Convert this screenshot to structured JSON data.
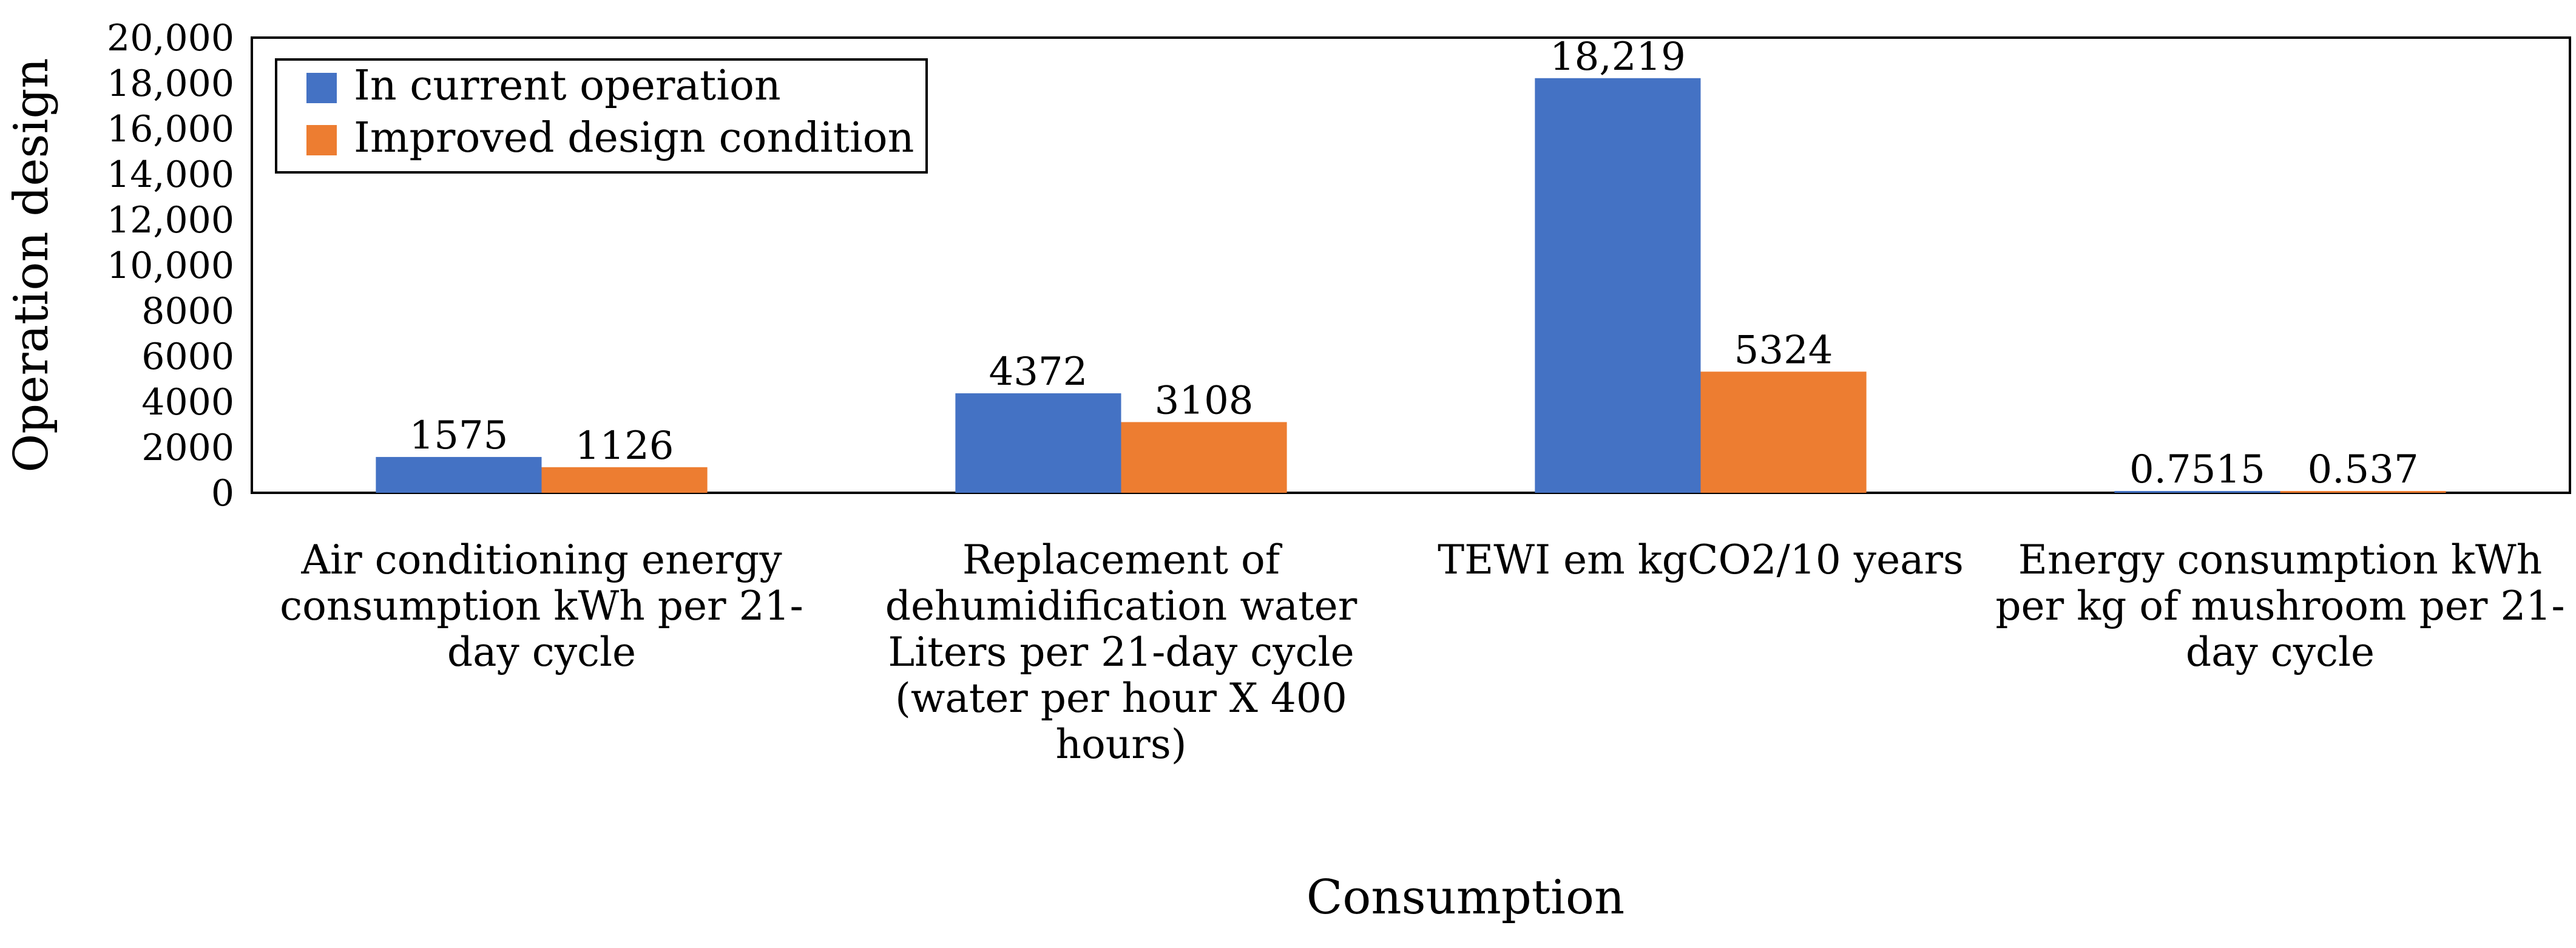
{
  "chart_data": {
    "type": "bar",
    "title": "",
    "xlabel": "Consumption",
    "ylabel": "Operation design",
    "ylim": [
      0,
      20000
    ],
    "yticks": [
      0,
      2000,
      4000,
      6000,
      8000,
      10000,
      12000,
      14000,
      16000,
      18000,
      20000
    ],
    "ytick_labels": [
      "0",
      "2000",
      "4000",
      "6000",
      "8000",
      "10,000",
      "12,000",
      "14,000",
      "16,000",
      "18,000",
      "20,000"
    ],
    "grid": false,
    "legend_position": "top-left",
    "categories": [
      [
        "Air conditioning energy",
        "consumption kWh per 21-",
        "day cycle"
      ],
      [
        "Replacement of",
        "dehumidification water",
        "Liters per 21-day cycle",
        "(water per hour X 400",
        "hours)"
      ],
      [
        "TEWI em kgCO2/10 years"
      ],
      [
        "Energy consumption kWh",
        "per kg of mushroom per 21-",
        "day cycle"
      ]
    ],
    "series": [
      {
        "name": "In current operation",
        "color": "#4472C4",
        "values": [
          1575,
          4372,
          18219,
          0.7515
        ],
        "labels": [
          "1575",
          "4372",
          "18,219",
          "0.7515"
        ]
      },
      {
        "name": "Improved design condition",
        "color": "#ED7D31",
        "values": [
          1126,
          3108,
          5324,
          0.537
        ],
        "labels": [
          "1126",
          "3108",
          "5324",
          "0.537"
        ]
      }
    ]
  }
}
